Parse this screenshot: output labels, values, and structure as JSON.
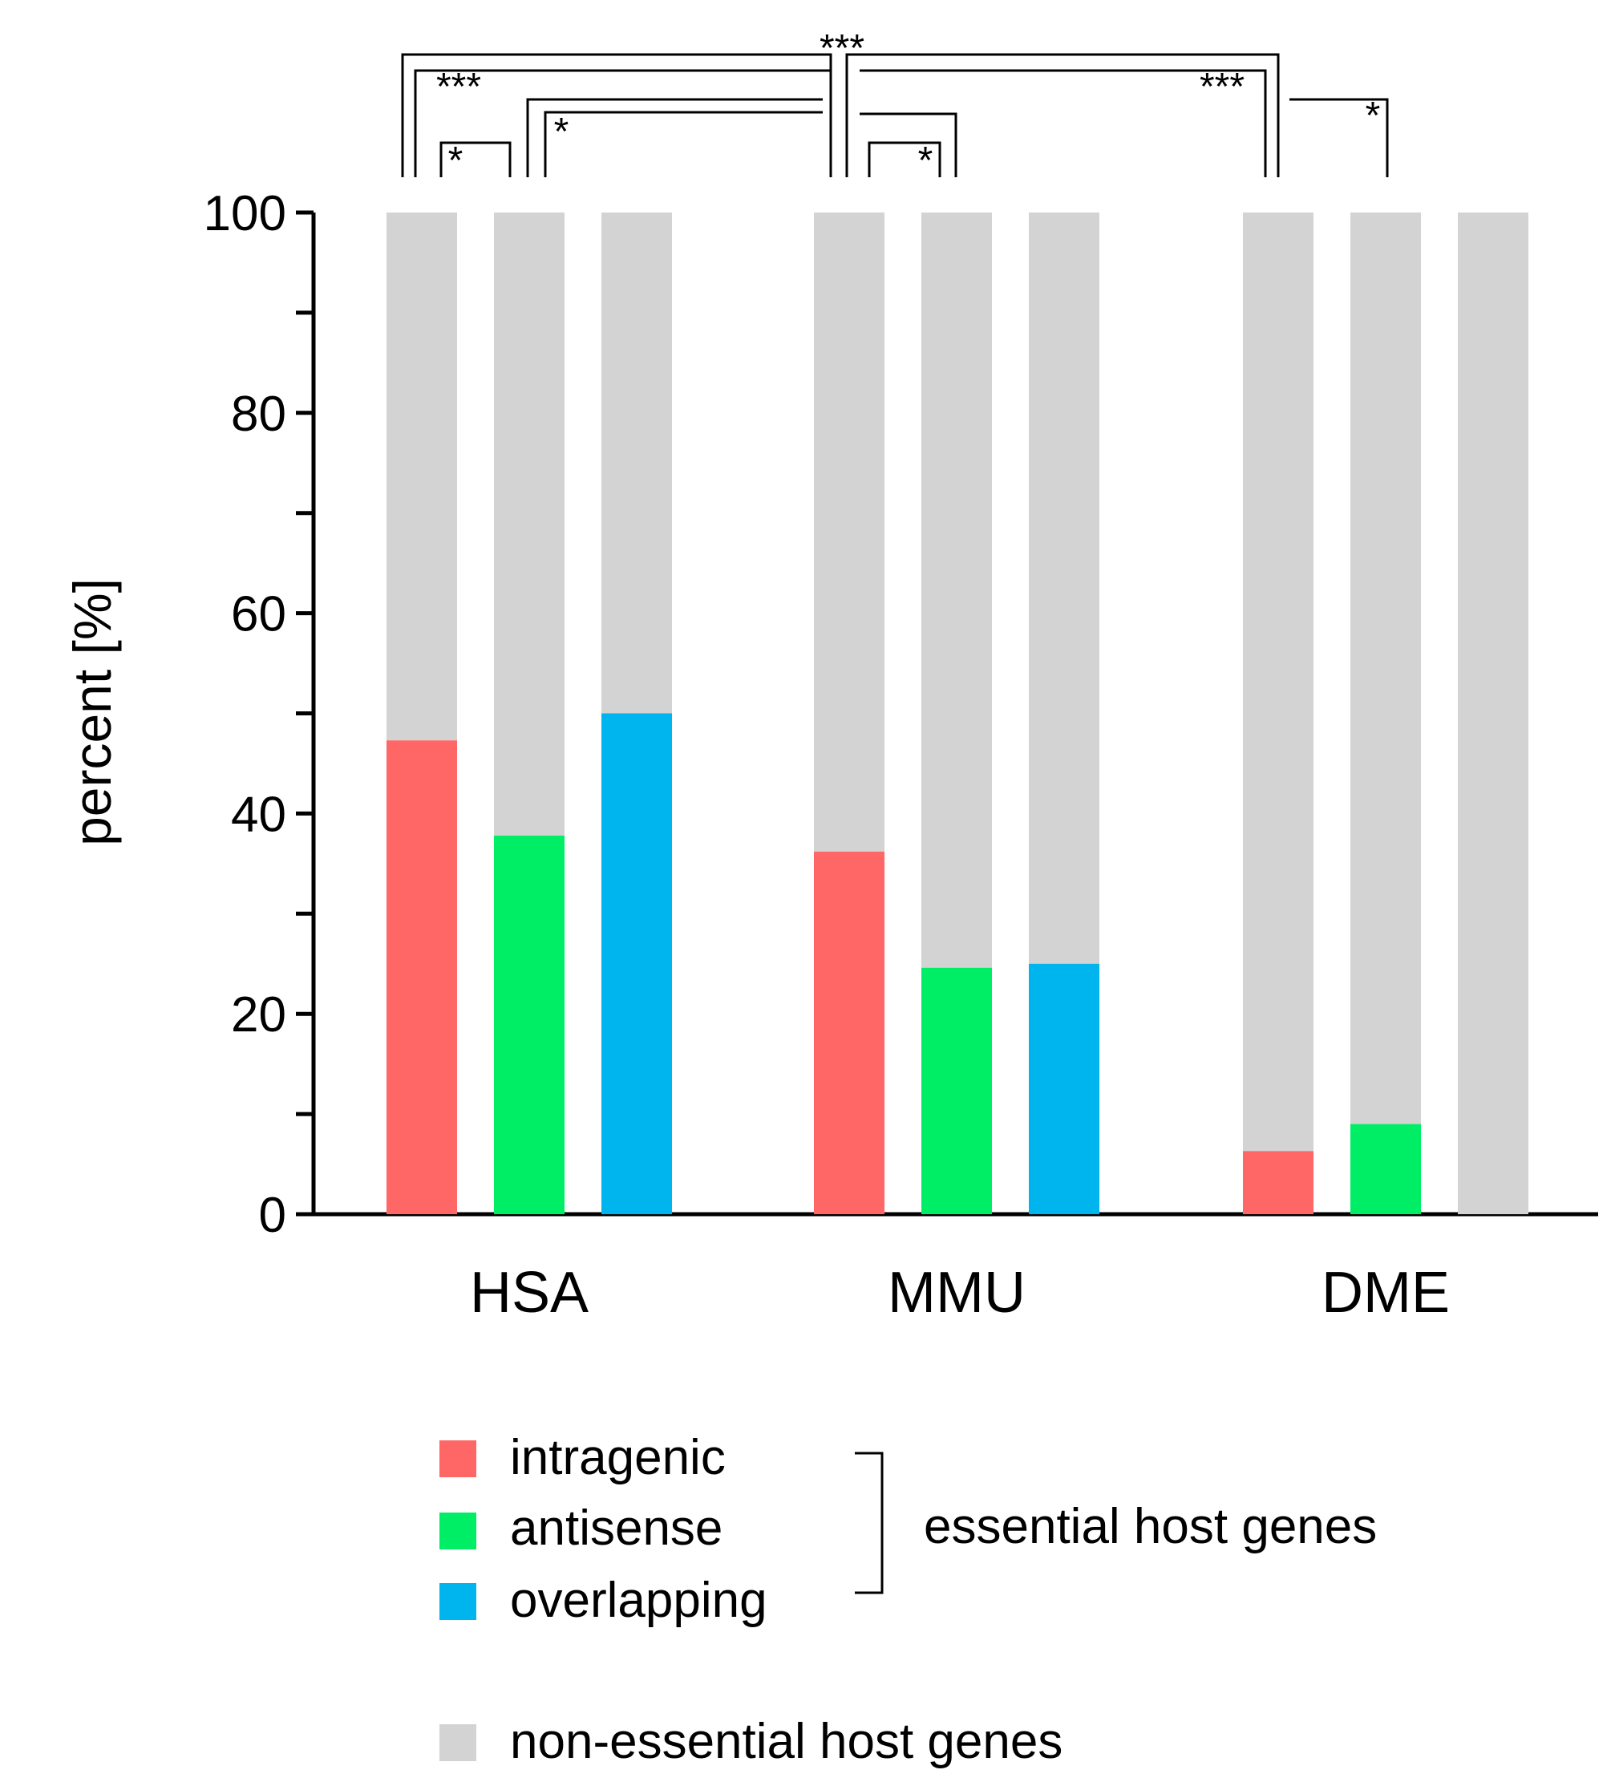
{
  "colors": {
    "intragenic": "#ff6666",
    "antisense": "#00ee66",
    "overlapping": "#00b4ee",
    "non_essential": "#d3d3d3"
  },
  "chart_data": {
    "type": "bar",
    "stacked": true,
    "ylabel": "percent [%]",
    "xlabel": "",
    "ylim": [
      0,
      100
    ],
    "yticks": [
      0,
      20,
      40,
      60,
      80,
      100
    ],
    "ytick_labels": [
      "0",
      "20",
      "40",
      "60",
      "80",
      "100"
    ],
    "groups": [
      "HSA",
      "MMU",
      "DME"
    ],
    "subcategories": [
      "intragenic",
      "antisense",
      "overlapping"
    ],
    "essential_values": {
      "HSA": [
        47.3,
        37.8,
        50.0
      ],
      "MMU": [
        36.2,
        24.6,
        25.0
      ],
      "DME": [
        6.3,
        9.0,
        0.0
      ]
    },
    "non_essential_values": {
      "HSA": [
        52.7,
        62.2,
        50.0
      ],
      "MMU": [
        63.8,
        75.4,
        75.0
      ],
      "DME": [
        93.7,
        91.0,
        100.0
      ]
    },
    "significance": [
      "***",
      "***",
      "*",
      "*",
      "***",
      "*",
      "*"
    ],
    "legend": {
      "items": [
        "intragenic",
        "antisense",
        "overlapping"
      ],
      "bracket_label": "essential host genes",
      "non_essential_label": "non-essential host genes"
    }
  }
}
